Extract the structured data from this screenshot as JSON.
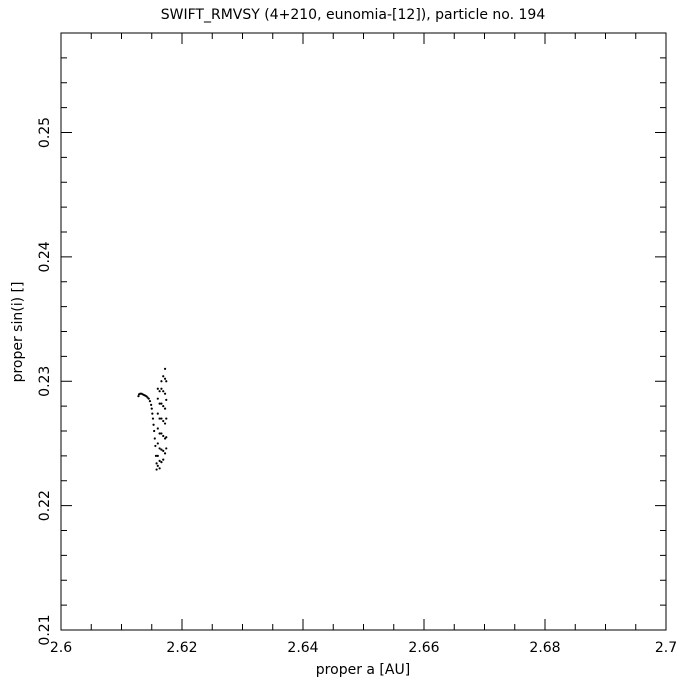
{
  "chart_data": {
    "type": "scatter",
    "title": "SWIFT_RMVSY (4+210, eunomia-[12]), particle no. 194",
    "xlabel": "proper a [AU]",
    "ylabel": "proper sin(i) []",
    "xlim": [
      2.6,
      2.7
    ],
    "ylim": [
      0.21,
      0.258
    ],
    "xticks": [
      2.6,
      2.62,
      2.64,
      2.66,
      2.68,
      2.7
    ],
    "xtick_labels": [
      "2.6",
      "2.62",
      "2.64",
      "2.66",
      "2.68",
      "2.7"
    ],
    "yticks": [
      0.21,
      0.22,
      0.23,
      0.24,
      0.25
    ],
    "ytick_labels": [
      "0.21",
      "0.22",
      "0.23",
      "0.24",
      "0.25"
    ],
    "grid": false,
    "series": [
      {
        "points": [
          [
            2.6128,
            0.2288
          ],
          [
            2.6129,
            0.22895
          ],
          [
            2.6131,
            0.229
          ],
          [
            2.6133,
            0.229
          ],
          [
            2.6135,
            0.22895
          ],
          [
            2.6137,
            0.2289
          ],
          [
            2.6139,
            0.22885
          ],
          [
            2.6141,
            0.2288
          ],
          [
            2.6143,
            0.2287
          ],
          [
            2.6145,
            0.2286
          ],
          [
            2.6147,
            0.2284
          ],
          [
            2.6149,
            0.2281
          ],
          [
            2.615,
            0.2278
          ],
          [
            2.6151,
            0.2274
          ],
          [
            2.6152,
            0.227
          ],
          [
            2.6153,
            0.2265
          ],
          [
            2.6154,
            0.226
          ],
          [
            2.6155,
            0.2254
          ],
          [
            2.6156,
            0.2248
          ],
          [
            2.6157,
            0.224
          ],
          [
            2.6158,
            0.2234
          ],
          [
            2.6158,
            0.2229
          ],
          [
            2.616,
            0.2232
          ],
          [
            2.616,
            0.224
          ],
          [
            2.616,
            0.225
          ],
          [
            2.616,
            0.2262
          ],
          [
            2.616,
            0.2274
          ],
          [
            2.616,
            0.2286
          ],
          [
            2.616,
            0.2294
          ],
          [
            2.6163,
            0.2292
          ],
          [
            2.6163,
            0.2282
          ],
          [
            2.6163,
            0.227
          ],
          [
            2.6163,
            0.2258
          ],
          [
            2.6163,
            0.2246
          ],
          [
            2.6163,
            0.2236
          ],
          [
            2.6163,
            0.223
          ],
          [
            2.6166,
            0.2235
          ],
          [
            2.6166,
            0.2245
          ],
          [
            2.6166,
            0.2258
          ],
          [
            2.6166,
            0.227
          ],
          [
            2.6166,
            0.2282
          ],
          [
            2.6166,
            0.2294
          ],
          [
            2.6166,
            0.23
          ],
          [
            2.6169,
            0.2304
          ],
          [
            2.6169,
            0.2292
          ],
          [
            2.6169,
            0.228
          ],
          [
            2.6169,
            0.2268
          ],
          [
            2.6169,
            0.2256
          ],
          [
            2.6169,
            0.2244
          ],
          [
            2.6169,
            0.2237
          ],
          [
            2.6172,
            0.2242
          ],
          [
            2.6172,
            0.2254
          ],
          [
            2.6172,
            0.2266
          ],
          [
            2.6172,
            0.2278
          ],
          [
            2.6172,
            0.229
          ],
          [
            2.6172,
            0.2302
          ],
          [
            2.6172,
            0.231
          ],
          [
            2.6174,
            0.23
          ],
          [
            2.6174,
            0.2285
          ],
          [
            2.6174,
            0.227
          ],
          [
            2.6174,
            0.2255
          ],
          [
            2.6174,
            0.2246
          ]
        ]
      }
    ]
  }
}
